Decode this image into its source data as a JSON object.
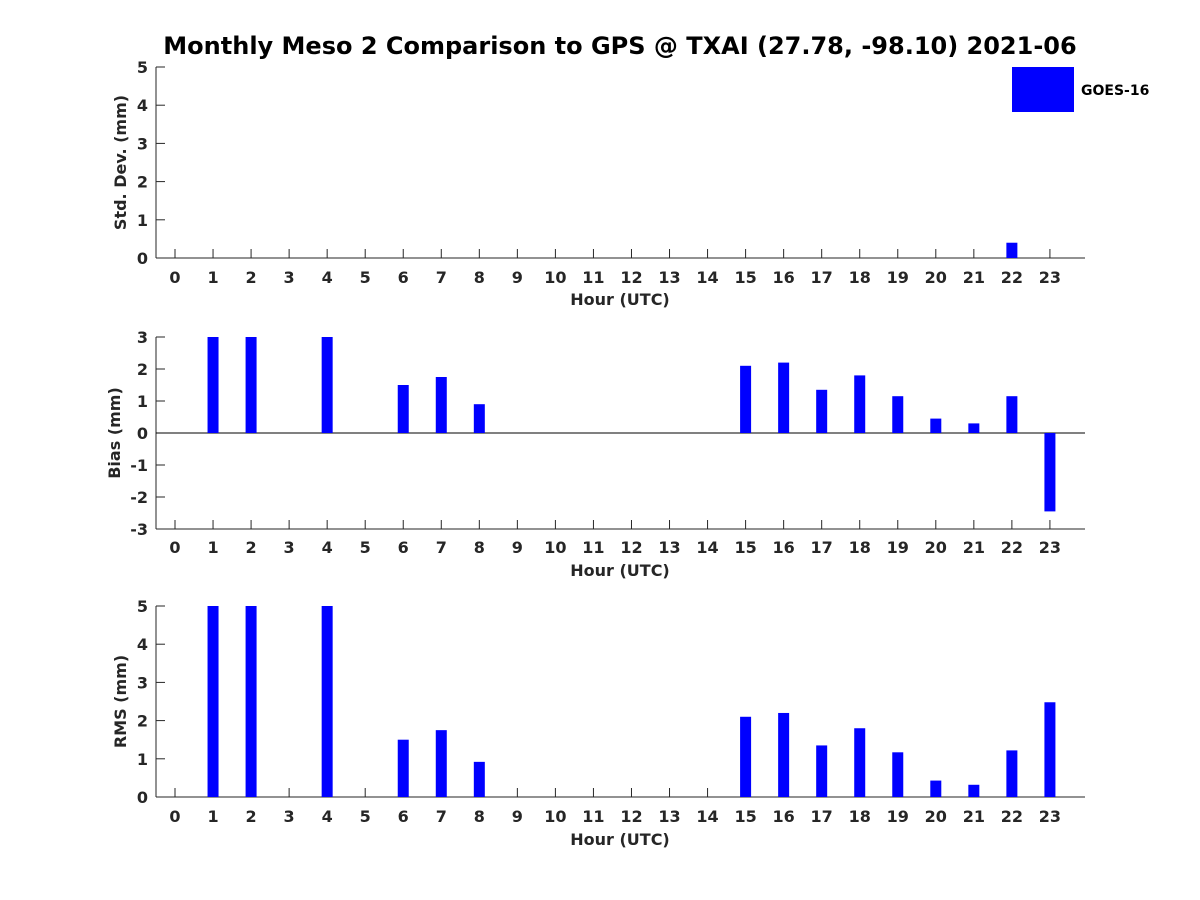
{
  "title": "Monthly Meso 2 Comparison to GPS @ TXAI (27.78, -98.10) 2021-06",
  "legend": {
    "label": "GOES-16",
    "color": "#0000ff"
  },
  "chart_data": [
    {
      "type": "bar",
      "categories": [
        "0",
        "1",
        "2",
        "3",
        "4",
        "5",
        "6",
        "7",
        "8",
        "9",
        "10",
        "11",
        "12",
        "13",
        "14",
        "15",
        "16",
        "17",
        "18",
        "19",
        "20",
        "21",
        "22",
        "23"
      ],
      "series": [
        {
          "name": "GOES-16",
          "values": [
            null,
            null,
            null,
            null,
            null,
            null,
            null,
            null,
            null,
            null,
            null,
            null,
            null,
            null,
            null,
            null,
            null,
            null,
            null,
            null,
            null,
            null,
            0.4,
            null
          ]
        }
      ],
      "xlabel": "Hour (UTC)",
      "ylabel": "Std. Dev. (mm)",
      "ylim": [
        0,
        5
      ],
      "yticks": [
        "0",
        "1",
        "2",
        "3",
        "4",
        "5"
      ],
      "legend_position": "top-right"
    },
    {
      "type": "bar",
      "categories": [
        "0",
        "1",
        "2",
        "3",
        "4",
        "5",
        "6",
        "7",
        "8",
        "9",
        "10",
        "11",
        "12",
        "13",
        "14",
        "15",
        "16",
        "17",
        "18",
        "19",
        "20",
        "21",
        "22",
        "23"
      ],
      "series": [
        {
          "name": "GOES-16",
          "values": [
            null,
            3.0,
            3.0,
            null,
            3.0,
            null,
            1.5,
            1.75,
            0.9,
            null,
            null,
            null,
            null,
            null,
            null,
            2.1,
            2.2,
            1.35,
            1.8,
            1.15,
            0.45,
            0.3,
            1.15,
            -2.45
          ]
        }
      ],
      "xlabel": "Hour (UTC)",
      "ylabel": "Bias (mm)",
      "ylim": [
        -3,
        3
      ],
      "yticks": [
        "-3",
        "-2",
        "-1",
        "0",
        "1",
        "2",
        "3"
      ],
      "zero_line": true
    },
    {
      "type": "bar",
      "categories": [
        "0",
        "1",
        "2",
        "3",
        "4",
        "5",
        "6",
        "7",
        "8",
        "9",
        "10",
        "11",
        "12",
        "13",
        "14",
        "15",
        "16",
        "17",
        "18",
        "19",
        "20",
        "21",
        "22",
        "23"
      ],
      "series": [
        {
          "name": "GOES-16",
          "values": [
            null,
            5.0,
            5.0,
            null,
            5.0,
            null,
            1.5,
            1.75,
            0.92,
            null,
            null,
            null,
            null,
            null,
            null,
            2.1,
            2.2,
            1.35,
            1.8,
            1.17,
            0.43,
            0.32,
            1.22,
            2.48
          ]
        }
      ],
      "xlabel": "Hour (UTC)",
      "ylabel": "RMS (mm)",
      "ylim": [
        0,
        5
      ],
      "yticks": [
        "0",
        "1",
        "2",
        "3",
        "4",
        "5"
      ]
    }
  ]
}
